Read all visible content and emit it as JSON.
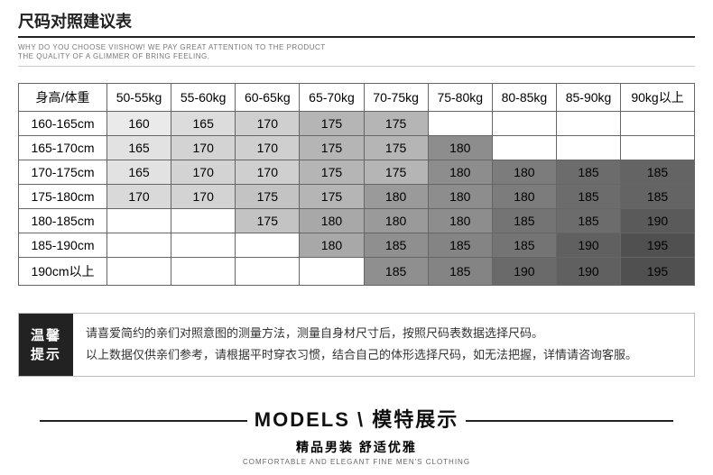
{
  "header": {
    "title": "尺码对照建议表",
    "sub1": "WHY DO YOU CHOOSE VIISHOW! WE PAY GREAT ATTENTION TO THE PRODUCT",
    "sub2": "THE QUALITY OF A GLIMMER OF BRING FEELING."
  },
  "table": {
    "corner": "身高/体重",
    "cols": [
      "50-55kg",
      "55-60kg",
      "60-65kg",
      "65-70kg",
      "70-75kg",
      "75-80kg",
      "80-85kg",
      "85-90kg",
      "90kg以上"
    ],
    "rows": [
      {
        "h": "160-165cm",
        "c": [
          {
            "v": "160",
            "s": "#eaeaea"
          },
          {
            "v": "165",
            "s": "#dcdcdc"
          },
          {
            "v": "170",
            "s": "#cfcfcf"
          },
          {
            "v": "175",
            "s": "#b5b5b5"
          },
          {
            "v": "175",
            "s": "#b5b5b5"
          },
          {
            "v": ""
          },
          {
            "v": ""
          },
          {
            "v": ""
          },
          {
            "v": ""
          }
        ]
      },
      {
        "h": "165-170cm",
        "c": [
          {
            "v": "165",
            "s": "#e2e2e2"
          },
          {
            "v": "170",
            "s": "#d3d3d3"
          },
          {
            "v": "170",
            "s": "#cfcfcf"
          },
          {
            "v": "175",
            "s": "#b5b5b5"
          },
          {
            "v": "175",
            "s": "#b5b5b5"
          },
          {
            "v": "180",
            "s": "#8d8d8d"
          },
          {
            "v": ""
          },
          {
            "v": ""
          },
          {
            "v": ""
          }
        ]
      },
      {
        "h": "170-175cm",
        "c": [
          {
            "v": "165",
            "s": "#e2e2e2"
          },
          {
            "v": "170",
            "s": "#d3d3d3"
          },
          {
            "v": "170",
            "s": "#cfcfcf"
          },
          {
            "v": "175",
            "s": "#b5b5b5"
          },
          {
            "v": "175",
            "s": "#b5b5b5"
          },
          {
            "v": "180",
            "s": "#8d8d8d"
          },
          {
            "v": "180",
            "s": "#7c7c7c"
          },
          {
            "v": "185",
            "s": "#6c6c6c"
          },
          {
            "v": "185",
            "s": "#646464"
          }
        ]
      },
      {
        "h": "175-180cm",
        "c": [
          {
            "v": "170",
            "s": "#d9d9d9"
          },
          {
            "v": "170",
            "s": "#d3d3d3"
          },
          {
            "v": "175",
            "s": "#c3c3c3"
          },
          {
            "v": "175",
            "s": "#b5b5b5"
          },
          {
            "v": "180",
            "s": "#9a9a9a"
          },
          {
            "v": "180",
            "s": "#8d8d8d"
          },
          {
            "v": "180",
            "s": "#7c7c7c"
          },
          {
            "v": "185",
            "s": "#6c6c6c"
          },
          {
            "v": "185",
            "s": "#646464"
          }
        ]
      },
      {
        "h": "180-185cm",
        "c": [
          {
            "v": ""
          },
          {
            "v": ""
          },
          {
            "v": "175",
            "s": "#c3c3c3"
          },
          {
            "v": "180",
            "s": "#a8a8a8"
          },
          {
            "v": "180",
            "s": "#9a9a9a"
          },
          {
            "v": "180",
            "s": "#8d8d8d"
          },
          {
            "v": "185",
            "s": "#747474"
          },
          {
            "v": "185",
            "s": "#6c6c6c"
          },
          {
            "v": "190",
            "s": "#5a5a5a"
          }
        ]
      },
      {
        "h": "185-190cm",
        "c": [
          {
            "v": ""
          },
          {
            "v": ""
          },
          {
            "v": ""
          },
          {
            "v": "180",
            "s": "#a8a8a8"
          },
          {
            "v": "185",
            "s": "#8f8f8f"
          },
          {
            "v": "185",
            "s": "#848484"
          },
          {
            "v": "185",
            "s": "#747474"
          },
          {
            "v": "190",
            "s": "#606060"
          },
          {
            "v": "195",
            "s": "#505050"
          }
        ]
      },
      {
        "h": "190cm以上",
        "c": [
          {
            "v": ""
          },
          {
            "v": ""
          },
          {
            "v": ""
          },
          {
            "v": ""
          },
          {
            "v": "185",
            "s": "#8f8f8f"
          },
          {
            "v": "185",
            "s": "#848484"
          },
          {
            "v": "190",
            "s": "#6a6a6a"
          },
          {
            "v": "190",
            "s": "#606060"
          },
          {
            "v": "195",
            "s": "#505050"
          }
        ]
      }
    ]
  },
  "tip": {
    "l1": "温馨",
    "l2": "提示",
    "r1": "请喜爱简约的亲们对照意图的测量方法，测量自身材尺寸后，按照尺码表数据选择尺码。",
    "r2": "以上数据仅供亲们参考，请根据平时穿衣习惯，结合自己的体形选择尺码，如无法把握，详情请咨询客服。"
  },
  "models": {
    "title_en": "MODELS",
    "sep": " \\ ",
    "title_cn": "模特展示",
    "sub": "精品男装 舒适优雅",
    "sub_en": "COMFORTABLE AND ELEGANT FINE MEN'S CLOTHING"
  }
}
